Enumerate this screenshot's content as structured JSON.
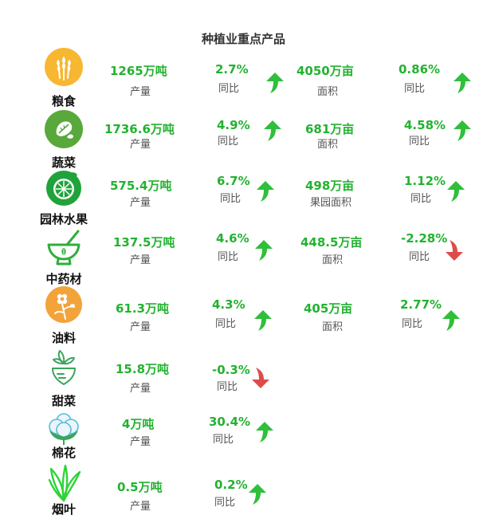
{
  "title": "种植业重点产品",
  "colors": {
    "up": "#2fbf3a",
    "down": "#dd4b4b",
    "value": "#23b230"
  },
  "rows": [
    {
      "name": "粮食",
      "icon": "wheat-icon",
      "production": {
        "value": "1265万吨",
        "label": "产量"
      },
      "production_yoy": {
        "value": "2.7%",
        "label": "同比",
        "direction": "up"
      },
      "area": {
        "value": "4050万亩",
        "label": "面积"
      },
      "area_yoy": {
        "value": "0.86%",
        "label": "同比",
        "direction": "up"
      }
    },
    {
      "name": "蔬菜",
      "icon": "vegetable-icon",
      "production": {
        "value": "1736.6万吨",
        "label": "产量"
      },
      "production_yoy": {
        "value": "4.9%",
        "label": "同比",
        "direction": "up"
      },
      "area": {
        "value": "681万亩",
        "label": "面积"
      },
      "area_yoy": {
        "value": "4.58%",
        "label": "同比",
        "direction": "up"
      }
    },
    {
      "name": "园林水果",
      "icon": "lime-fruit-icon",
      "production": {
        "value": "575.4万吨",
        "label": "产量"
      },
      "production_yoy": {
        "value": "6.7%",
        "label": "同比",
        "direction": "up"
      },
      "area": {
        "value": "498万亩",
        "label": "果园面积"
      },
      "area_yoy": {
        "value": "1.12%",
        "label": "同比",
        "direction": "up"
      }
    },
    {
      "name": "中药材",
      "icon": "mortar-pestle-icon",
      "production": {
        "value": "137.5万吨",
        "label": "产量"
      },
      "production_yoy": {
        "value": "4.6%",
        "label": "同比",
        "direction": "up"
      },
      "area": {
        "value": "448.5万亩",
        "label": "面积"
      },
      "area_yoy": {
        "value": "-2.28%",
        "label": "同比",
        "direction": "down"
      }
    },
    {
      "name": "油料",
      "icon": "flower-icon",
      "production": {
        "value": "61.3万吨",
        "label": "产量"
      },
      "production_yoy": {
        "value": "4.3%",
        "label": "同比",
        "direction": "up"
      },
      "area": {
        "value": "405万亩",
        "label": "面积"
      },
      "area_yoy": {
        "value": "2.77%",
        "label": "同比",
        "direction": "up"
      }
    },
    {
      "name": "甜菜",
      "icon": "beet-icon",
      "production": {
        "value": "15.8万吨",
        "label": "产量"
      },
      "production_yoy": {
        "value": "-0.3%",
        "label": "同比",
        "direction": "down"
      }
    },
    {
      "name": "棉花",
      "icon": "cotton-icon",
      "production": {
        "value": "4万吨",
        "label": "产量"
      },
      "production_yoy": {
        "value": "30.4%",
        "label": "同比",
        "direction": "up"
      }
    },
    {
      "name": "烟叶",
      "icon": "tobacco-leaf-icon",
      "production": {
        "value": "0.5万吨",
        "label": "产量"
      },
      "production_yoy": {
        "value": "0.2%",
        "label": "同比",
        "direction": "up"
      }
    }
  ]
}
